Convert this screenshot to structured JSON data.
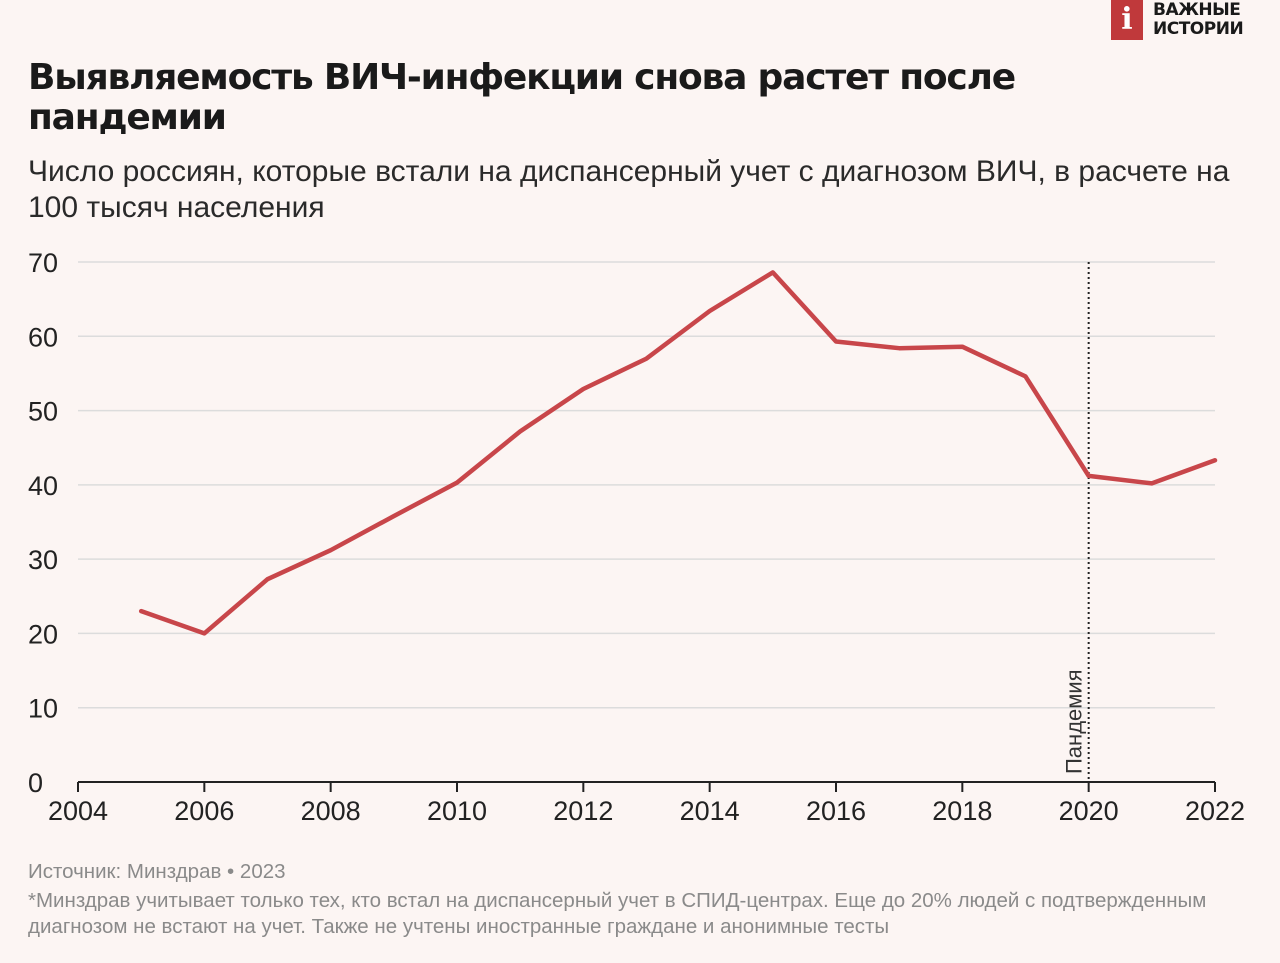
{
  "brand": {
    "mark": "i",
    "line1": "ВАЖНЫЕ",
    "line2": "ИСТОРИИ",
    "color": "#c0393b"
  },
  "title": "Выявляемость ВИЧ-инфекции снова растет после пандемии",
  "subtitle": "Число россиян, которые встали на диспансерный учет с диагнозом ВИЧ, в расчете на 100 тысяч населения",
  "chart_data": {
    "type": "line",
    "title": "Выявляемость ВИЧ-инфекции снова растет после пандемии",
    "xlabel": "",
    "ylabel": "",
    "xlim": [
      2004,
      2022
    ],
    "ylim": [
      0,
      70
    ],
    "x_ticks": [
      2004,
      2006,
      2008,
      2010,
      2012,
      2014,
      2016,
      2018,
      2020,
      2022
    ],
    "y_ticks": [
      0,
      10,
      20,
      30,
      40,
      50,
      60,
      70
    ],
    "grid": "horizontal",
    "series": [
      {
        "name": "Выявляемость ВИЧ",
        "color": "#c8464a",
        "x": [
          2005,
          2006,
          2007,
          2008,
          2009,
          2010,
          2011,
          2012,
          2013,
          2014,
          2015,
          2016,
          2017,
          2018,
          2019,
          2020,
          2021,
          2022
        ],
        "values": [
          23.0,
          20.0,
          27.3,
          31.2,
          35.8,
          40.3,
          47.2,
          52.9,
          57.0,
          63.4,
          68.6,
          59.3,
          58.4,
          58.6,
          54.6,
          41.2,
          40.2,
          43.3
        ]
      }
    ],
    "annotations": [
      {
        "label": "Пандемия",
        "x": 2020,
        "style": "dotted-vertical"
      }
    ]
  },
  "footer": {
    "source": "Источник: Минздрав • 2023",
    "note": "*Минздрав учитывает только тех, кто встал на диспансерный учет в СПИД-центрах. Еще до 20% людей с подтвержденным диагнозом не встают на учет. Также не учтены иностранные граждане и анонимные тесты"
  }
}
